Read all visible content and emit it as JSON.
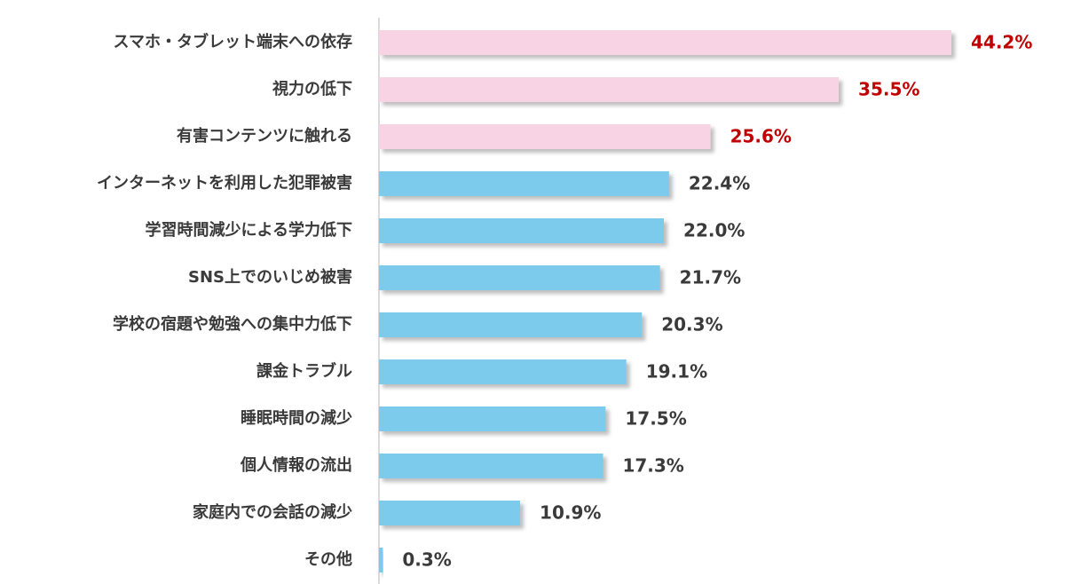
{
  "chart_data": {
    "type": "bar",
    "orientation": "horizontal",
    "categories": [
      "スマホ・タブレット端末への依存",
      "視力の低下",
      "有害コンテンツに触れる",
      "インターネットを利用した犯罪被害",
      "学習時間減少による学力低下",
      "SNS上でのいじめ被害",
      "学校の宿題や勉強への集中力低下",
      "課金トラブル",
      "睡眠時間の減少",
      "個人情報の流出",
      "家庭内での会話の減少",
      "その他"
    ],
    "values": [
      44.2,
      35.5,
      25.6,
      22.4,
      22.0,
      21.7,
      20.3,
      19.1,
      17.5,
      17.3,
      10.9,
      0.3
    ],
    "value_labels": [
      "44.2%",
      "35.5%",
      "25.6%",
      "22.4%",
      "22.0%",
      "21.7%",
      "20.3%",
      "19.1%",
      "17.5%",
      "17.3%",
      "10.9%",
      "0.3%"
    ],
    "colors": [
      "#f8d3e3",
      "#f8d3e3",
      "#f8d3e3",
      "#7ccbec",
      "#7ccbec",
      "#7ccbec",
      "#7ccbec",
      "#7ccbec",
      "#7ccbec",
      "#7ccbec",
      "#7ccbec",
      "#7ccbec"
    ],
    "value_label_colors": [
      "#c00000",
      "#c00000",
      "#c00000",
      "#3a3a3a",
      "#3a3a3a",
      "#3a3a3a",
      "#3a3a3a",
      "#3a3a3a",
      "#3a3a3a",
      "#3a3a3a",
      "#3a3a3a",
      "#3a3a3a"
    ]
  }
}
